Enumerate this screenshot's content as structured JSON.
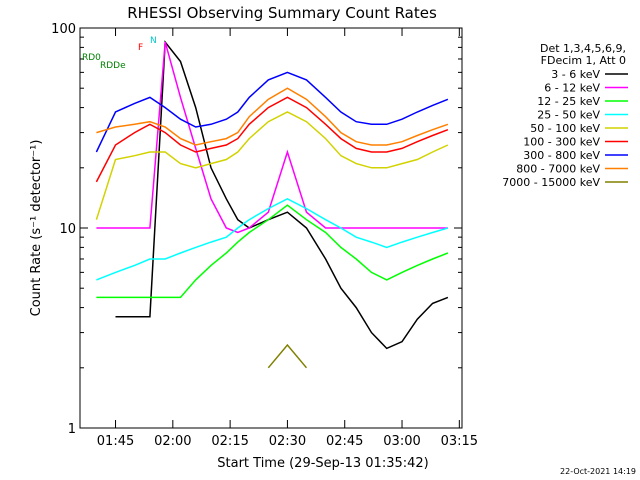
{
  "chart_data": {
    "type": "line",
    "title": "RHESSI Observing Summary Count Rates",
    "xlabel": "Start Time (29-Sep-13 01:35:42)",
    "ylabel": "Count Rate (s⁻¹ detector⁻¹)",
    "yscale": "log",
    "ylim": [
      1,
      100
    ],
    "xlim_minutes": [
      0,
      100
    ],
    "x_start": "01:35:42",
    "x_ticks": [
      "01:45",
      "02:00",
      "02:15",
      "02:30",
      "02:45",
      "03:00",
      "03:15"
    ],
    "y_ticks": [
      "1",
      "10",
      "100"
    ],
    "legend_header": [
      "Det 1,3,4,5,6,9,",
      "FDecim 1, Att 0"
    ],
    "x": [
      "01:36",
      "01:40",
      "01:45",
      "01:50",
      "01:54",
      "01:58",
      "02:02",
      "02:06",
      "02:10",
      "02:14",
      "02:17",
      "02:20",
      "02:25",
      "02:30",
      "02:35",
      "02:40",
      "02:44",
      "02:48",
      "02:52",
      "02:56",
      "03:00",
      "03:04",
      "03:08",
      "03:12"
    ],
    "series": [
      {
        "name": "3 - 6 keV",
        "color": "#000000",
        "values": [
          null,
          null,
          3.6,
          3.6,
          3.6,
          85,
          68,
          40,
          20,
          14,
          11,
          10,
          11,
          12,
          10,
          7,
          5,
          4,
          3,
          2.5,
          2.7,
          3.5,
          4.2,
          4.5
        ]
      },
      {
        "name": "6 - 12 keV",
        "color": "#ff00ff",
        "values": [
          null,
          10,
          10,
          10,
          10,
          85,
          45,
          25,
          14,
          10,
          9.5,
          10,
          12,
          24,
          12,
          10,
          10,
          10,
          10,
          10,
          10,
          10,
          10,
          10
        ]
      },
      {
        "name": "12 - 25 keV",
        "color": "#00ff00",
        "values": [
          null,
          4.5,
          4.5,
          4.5,
          4.5,
          4.5,
          4.5,
          5.5,
          6.5,
          7.5,
          8.5,
          9.5,
          11,
          13,
          11,
          9.5,
          8,
          7,
          6,
          5.5,
          6,
          6.5,
          7,
          7.5
        ]
      },
      {
        "name": "25 - 50 keV",
        "color": "#00ffff",
        "values": [
          null,
          5.5,
          6,
          6.5,
          7,
          7,
          7.5,
          8,
          8.5,
          9,
          10,
          11,
          12.5,
          14,
          12.5,
          11,
          10,
          9,
          8.5,
          8,
          8.5,
          9,
          9.5,
          10
        ]
      },
      {
        "name": "50 - 100 keV",
        "color": "#d2d200",
        "values": [
          null,
          11,
          22,
          23,
          24,
          24,
          21,
          20,
          21,
          22,
          24,
          28,
          34,
          38,
          34,
          28,
          23,
          21,
          20,
          20,
          21,
          22,
          24,
          26
        ]
      },
      {
        "name": "100 - 300 keV",
        "color": "#ff0000",
        "values": [
          null,
          17,
          26,
          30,
          33,
          30,
          26,
          24,
          25,
          26,
          28,
          33,
          40,
          45,
          40,
          33,
          28,
          25,
          24,
          24,
          25,
          27,
          29,
          31
        ]
      },
      {
        "name": "300 - 800 keV",
        "color": "#0000ff",
        "values": [
          null,
          24,
          38,
          42,
          45,
          40,
          35,
          32,
          33,
          35,
          38,
          45,
          55,
          60,
          55,
          45,
          38,
          34,
          33,
          33,
          35,
          38,
          41,
          44
        ]
      },
      {
        "name": "800 - 7000 keV",
        "color": "#ff8000",
        "values": [
          null,
          30,
          32,
          33,
          34,
          32,
          28,
          26,
          27,
          28,
          30,
          36,
          44,
          50,
          44,
          36,
          30,
          27,
          26,
          26,
          27,
          29,
          31,
          33
        ]
      },
      {
        "name": "7000 - 15000 keV",
        "color": "#808000",
        "values": [
          null,
          null,
          null,
          null,
          null,
          null,
          null,
          null,
          null,
          null,
          null,
          null,
          2,
          2.6,
          2,
          null,
          null,
          null,
          null,
          null,
          null,
          null,
          null,
          null
        ]
      }
    ],
    "annotations": [
      {
        "text": "RD0",
        "color": "#008000"
      },
      {
        "text": "RDDe",
        "color": "#008000"
      },
      {
        "text": "N",
        "color": "#00c8c8"
      },
      {
        "text": "F",
        "color": "#ff0000"
      }
    ],
    "timestamp": "22-Oct-2021 14:19"
  }
}
